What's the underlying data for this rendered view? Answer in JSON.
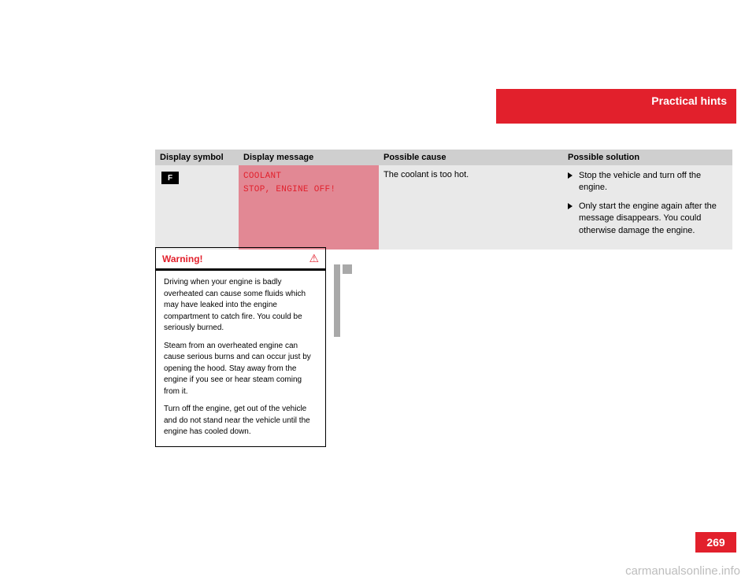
{
  "header": {
    "title": "Practical hints"
  },
  "page_number": "269",
  "table": {
    "columns": [
      "Display symbol",
      "Display message",
      "Possible cause",
      "Possible solution"
    ],
    "row": {
      "symbol_label": "F",
      "message_line1": "COOLANT",
      "message_line2": "STOP, ENGINE OFF!",
      "cause": "The coolant is too hot.",
      "solutions": [
        "Stop the vehicle and turn off the engine.",
        "Only start the engine again after the message disappears. You could otherwise damage the engine."
      ]
    }
  },
  "warning": {
    "title": "Warning!",
    "icon": "⚠",
    "paragraphs": [
      "Driving when your engine is badly overheated can cause some fluids which may have leaked into the engine compartment to catch fire. You could be seriously burned.",
      "Steam from an overheated engine can cause serious burns and can occur just by opening the hood. Stay away from the engine if you see or hear steam coming from it.",
      "Turn off the engine, get out of the vehicle and do not stand near the vehicle until the engine has cooled down."
    ]
  },
  "watermark": "carmanualsonline.info"
}
